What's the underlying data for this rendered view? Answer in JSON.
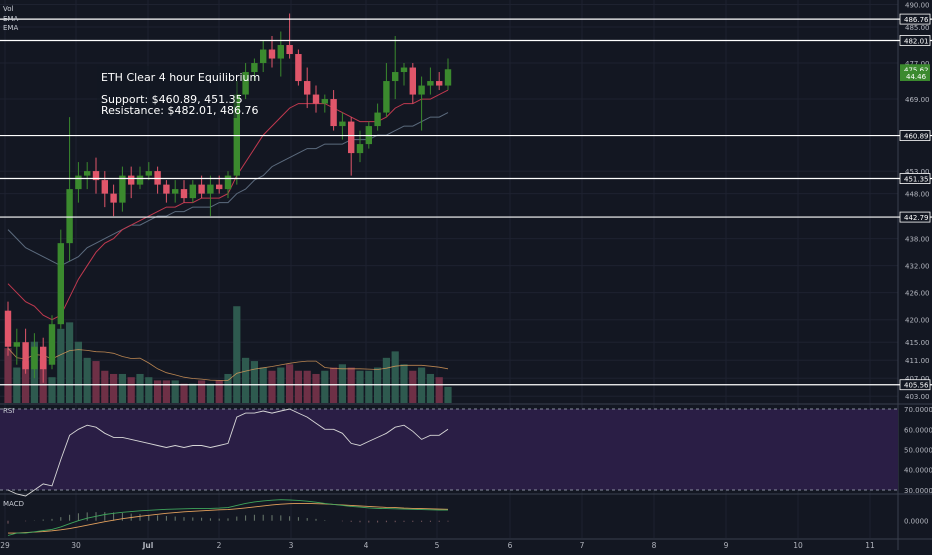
{
  "indicators": {
    "vol": "Vol",
    "ema1": "EMA",
    "ema2": "EMA",
    "rsi": "RSI",
    "macd": "MACD"
  },
  "annotation": {
    "title": "ETH Clear 4 hour Equilibrium",
    "support": "Support: $460.89, 451.35",
    "resistance": "Resistance: $482.01, 486.76"
  },
  "colors": {
    "background": "#131722",
    "grid": "#1e2230",
    "bull": "#3b8a2e",
    "bear": "#e0566a",
    "vol_bull": "#2e5a4f",
    "vol_bear": "#6e3046",
    "ema_fast": "#c0394f",
    "ema_slow": "#5c6b7e",
    "rsi_line": "#d7d7d7",
    "rsi_band": "#2a1e45",
    "macd_line": "#3fa55c",
    "signal_line": "#e3a05c",
    "level_line": "#ffffff",
    "last_price_tag": "#3b8a2e"
  },
  "chart_data": {
    "type": "candlestick",
    "symbol": "ETH",
    "timeframe": "4h",
    "x_ticks": [
      "29",
      "30",
      "Jul",
      "2",
      "3",
      "4",
      "5",
      "6",
      "7",
      "8",
      "9",
      "10",
      "11"
    ],
    "y_ticks": [
      "490.00",
      "485.00",
      "477.00",
      "469.00",
      "453.00",
      "448.00",
      "438.00",
      "432.00",
      "426.00",
      "420.00",
      "415.00",
      "411.00",
      "407.00",
      "403.00"
    ],
    "price_range": [
      401.5,
      491
    ],
    "horizontal_levels": [
      "486.76",
      "482.01",
      "460.89",
      "451.35",
      "442.79",
      "405.56"
    ],
    "last_price": "475.62",
    "last_tag_2": "44.46",
    "candles": [
      {
        "o": 422.0,
        "h": 424.0,
        "l": 412.0,
        "c": 414.0
      },
      {
        "o": 414.0,
        "h": 418.0,
        "l": 410.0,
        "c": 415.0
      },
      {
        "o": 415.0,
        "h": 418.0,
        "l": 408.0,
        "c": 409.0
      },
      {
        "o": 409.0,
        "h": 417.0,
        "l": 407.0,
        "c": 414.0
      },
      {
        "o": 414.0,
        "h": 416.0,
        "l": 406.0,
        "c": 409.0
      },
      {
        "o": 410.0,
        "h": 421.0,
        "l": 409.0,
        "c": 419.0
      },
      {
        "o": 419.0,
        "h": 440.0,
        "l": 418.0,
        "c": 437.0
      },
      {
        "o": 437.0,
        "h": 465.0,
        "l": 433.0,
        "c": 449.0
      },
      {
        "o": 449.0,
        "h": 455.0,
        "l": 446.0,
        "c": 452.0
      },
      {
        "o": 452.0,
        "h": 455.0,
        "l": 449.0,
        "c": 453.0
      },
      {
        "o": 453.0,
        "h": 456.0,
        "l": 448.0,
        "c": 451.0
      },
      {
        "o": 451.0,
        "h": 453.0,
        "l": 445.0,
        "c": 448.0
      },
      {
        "o": 448.0,
        "h": 450.0,
        "l": 443.0,
        "c": 446.0
      },
      {
        "o": 446.0,
        "h": 454.0,
        "l": 444.0,
        "c": 452.0
      },
      {
        "o": 452.0,
        "h": 454.0,
        "l": 447.0,
        "c": 450.0
      },
      {
        "o": 450.0,
        "h": 454.0,
        "l": 449.0,
        "c": 452.0
      },
      {
        "o": 452.0,
        "h": 455.0,
        "l": 451.0,
        "c": 453.0
      },
      {
        "o": 453.0,
        "h": 454.0,
        "l": 448.0,
        "c": 450.0
      },
      {
        "o": 450.0,
        "h": 451.0,
        "l": 446.0,
        "c": 448.0
      },
      {
        "o": 448.0,
        "h": 451.0,
        "l": 446.0,
        "c": 449.0
      },
      {
        "o": 449.0,
        "h": 451.0,
        "l": 446.0,
        "c": 447.0
      },
      {
        "o": 447.0,
        "h": 451.0,
        "l": 446.0,
        "c": 450.0
      },
      {
        "o": 450.0,
        "h": 452.0,
        "l": 447.0,
        "c": 448.0
      },
      {
        "o": 448.0,
        "h": 452.0,
        "l": 443.0,
        "c": 450.0
      },
      {
        "o": 450.0,
        "h": 452.0,
        "l": 448.0,
        "c": 449.0
      },
      {
        "o": 449.0,
        "h": 453.0,
        "l": 447.0,
        "c": 452.0
      },
      {
        "o": 452.0,
        "h": 473.0,
        "l": 450.0,
        "c": 470.0
      },
      {
        "o": 470.0,
        "h": 477.0,
        "l": 469.0,
        "c": 475.0
      },
      {
        "o": 475.0,
        "h": 478.0,
        "l": 473.0,
        "c": 477.0
      },
      {
        "o": 477.0,
        "h": 482.0,
        "l": 475.0,
        "c": 480.0
      },
      {
        "o": 480.0,
        "h": 483.0,
        "l": 476.0,
        "c": 478.0
      },
      {
        "o": 478.0,
        "h": 484.0,
        "l": 474.0,
        "c": 481.0
      },
      {
        "o": 481.0,
        "h": 488.0,
        "l": 478.0,
        "c": 479.0
      },
      {
        "o": 479.0,
        "h": 480.0,
        "l": 472.0,
        "c": 473.0
      },
      {
        "o": 473.0,
        "h": 476.0,
        "l": 467.0,
        "c": 470.0
      },
      {
        "o": 470.0,
        "h": 472.0,
        "l": 466.0,
        "c": 468.0
      },
      {
        "o": 468.0,
        "h": 470.0,
        "l": 466.0,
        "c": 469.0
      },
      {
        "o": 469.0,
        "h": 471.0,
        "l": 462.0,
        "c": 463.0
      },
      {
        "o": 463.0,
        "h": 466.0,
        "l": 460.0,
        "c": 464.0
      },
      {
        "o": 464.0,
        "h": 465.0,
        "l": 452.0,
        "c": 457.0
      },
      {
        "o": 457.0,
        "h": 462.0,
        "l": 455.0,
        "c": 459.0
      },
      {
        "o": 459.0,
        "h": 464.0,
        "l": 458.0,
        "c": 463.0
      },
      {
        "o": 463.0,
        "h": 468.0,
        "l": 462.0,
        "c": 466.0
      },
      {
        "o": 466.0,
        "h": 477.0,
        "l": 465.0,
        "c": 473.0
      },
      {
        "o": 473.0,
        "h": 483.0,
        "l": 469.0,
        "c": 475.0
      },
      {
        "o": 475.0,
        "h": 477.0,
        "l": 472.0,
        "c": 476.0
      },
      {
        "o": 476.0,
        "h": 477.0,
        "l": 468.0,
        "c": 470.0
      },
      {
        "o": 470.0,
        "h": 474.0,
        "l": 462.0,
        "c": 472.0
      },
      {
        "o": 472.0,
        "h": 476.0,
        "l": 470.0,
        "c": 473.0
      },
      {
        "o": 473.0,
        "h": 475.0,
        "l": 471.0,
        "c": 472.0
      },
      {
        "o": 472.0,
        "h": 478.0,
        "l": 471.0,
        "c": 475.62
      }
    ],
    "volume": [
      17,
      11,
      13,
      19,
      14,
      8,
      23,
      25,
      19,
      14,
      13,
      10,
      9,
      9,
      8,
      9,
      8,
      7,
      7,
      7,
      6,
      6,
      7,
      6,
      7,
      9,
      30,
      14,
      13,
      11,
      10,
      11,
      12,
      10,
      10,
      9,
      10,
      11,
      12,
      11,
      10,
      10,
      11,
      14,
      16,
      12,
      10,
      11,
      9,
      8,
      5
    ],
    "volume_max": 31,
    "ema_fast": [
      428,
      426,
      424,
      423,
      421,
      420,
      421,
      425,
      429,
      432,
      435,
      437,
      438,
      440,
      441,
      442,
      443,
      444,
      445,
      445,
      446,
      446,
      447,
      447,
      447,
      448,
      452,
      455,
      458,
      461,
      463,
      465,
      467,
      468,
      468,
      468,
      468,
      467,
      466,
      465,
      464,
      464,
      464,
      465,
      467,
      468,
      468,
      469,
      469,
      470,
      471
    ],
    "ema_slow": [
      440,
      438,
      436,
      435,
      434,
      433,
      432,
      433,
      434,
      436,
      437,
      438,
      439,
      440,
      441,
      441,
      442,
      443,
      443,
      444,
      444,
      445,
      445,
      445,
      446,
      446,
      448,
      449,
      451,
      452,
      454,
      455,
      456,
      457,
      458,
      458,
      459,
      459,
      459,
      460,
      460,
      460,
      461,
      461,
      462,
      463,
      463,
      464,
      465,
      465,
      466
    ],
    "rsi": {
      "values": [
        30,
        28,
        27,
        30,
        33,
        32,
        45,
        57,
        60,
        62,
        61,
        58,
        56,
        56,
        55,
        54,
        53,
        52,
        51,
        52,
        51,
        52,
        52,
        51,
        52,
        53,
        66,
        68,
        68,
        69,
        68,
        69,
        70,
        68,
        66,
        63,
        60,
        60,
        58,
        53,
        52,
        54,
        56,
        58,
        61,
        62,
        59,
        55,
        57,
        57,
        60
      ],
      "levels": [
        70,
        30
      ],
      "range": [
        29,
        71
      ],
      "y_ticks": [
        "70.0000",
        "60.0000",
        "50.0000",
        "40.0000",
        "30.0000"
      ]
    },
    "macd": {
      "macd_line": [
        -6,
        -5,
        -5,
        -4.5,
        -4,
        -3.5,
        -2.5,
        -1.2,
        0,
        1,
        1.8,
        2.5,
        3,
        3.4,
        3.7,
        4,
        4.2,
        4.4,
        4.6,
        4.7,
        4.8,
        4.9,
        5,
        5,
        5.1,
        5.3,
        6.2,
        7,
        7.6,
        8,
        8.3,
        8.5,
        8.4,
        8.2,
        7.9,
        7.5,
        7,
        6.6,
        6.2,
        5.8,
        5.5,
        5.2,
        5,
        4.9,
        4.8,
        4.7,
        4.6,
        4.5,
        4.4,
        4.3,
        4.3
      ],
      "signal_line": [
        -5,
        -5,
        -4.8,
        -4.6,
        -4.4,
        -4.1,
        -3.7,
        -3.2,
        -2.5,
        -1.8,
        -1.1,
        -0.4,
        0.2,
        0.8,
        1.3,
        1.8,
        2.2,
        2.6,
        3,
        3.3,
        3.6,
        3.8,
        4,
        4.2,
        4.4,
        4.5,
        4.8,
        5.2,
        5.6,
        6,
        6.4,
        6.7,
        6.9,
        7,
        7,
        6.9,
        6.8,
        6.6,
        6.4,
        6.2,
        6,
        5.8,
        5.6,
        5.4,
        5.3,
        5.1,
        5,
        4.9,
        4.8,
        4.7,
        4.6
      ],
      "range": [
        -7,
        10
      ],
      "y_ticks": [
        "0.0000"
      ]
    }
  }
}
